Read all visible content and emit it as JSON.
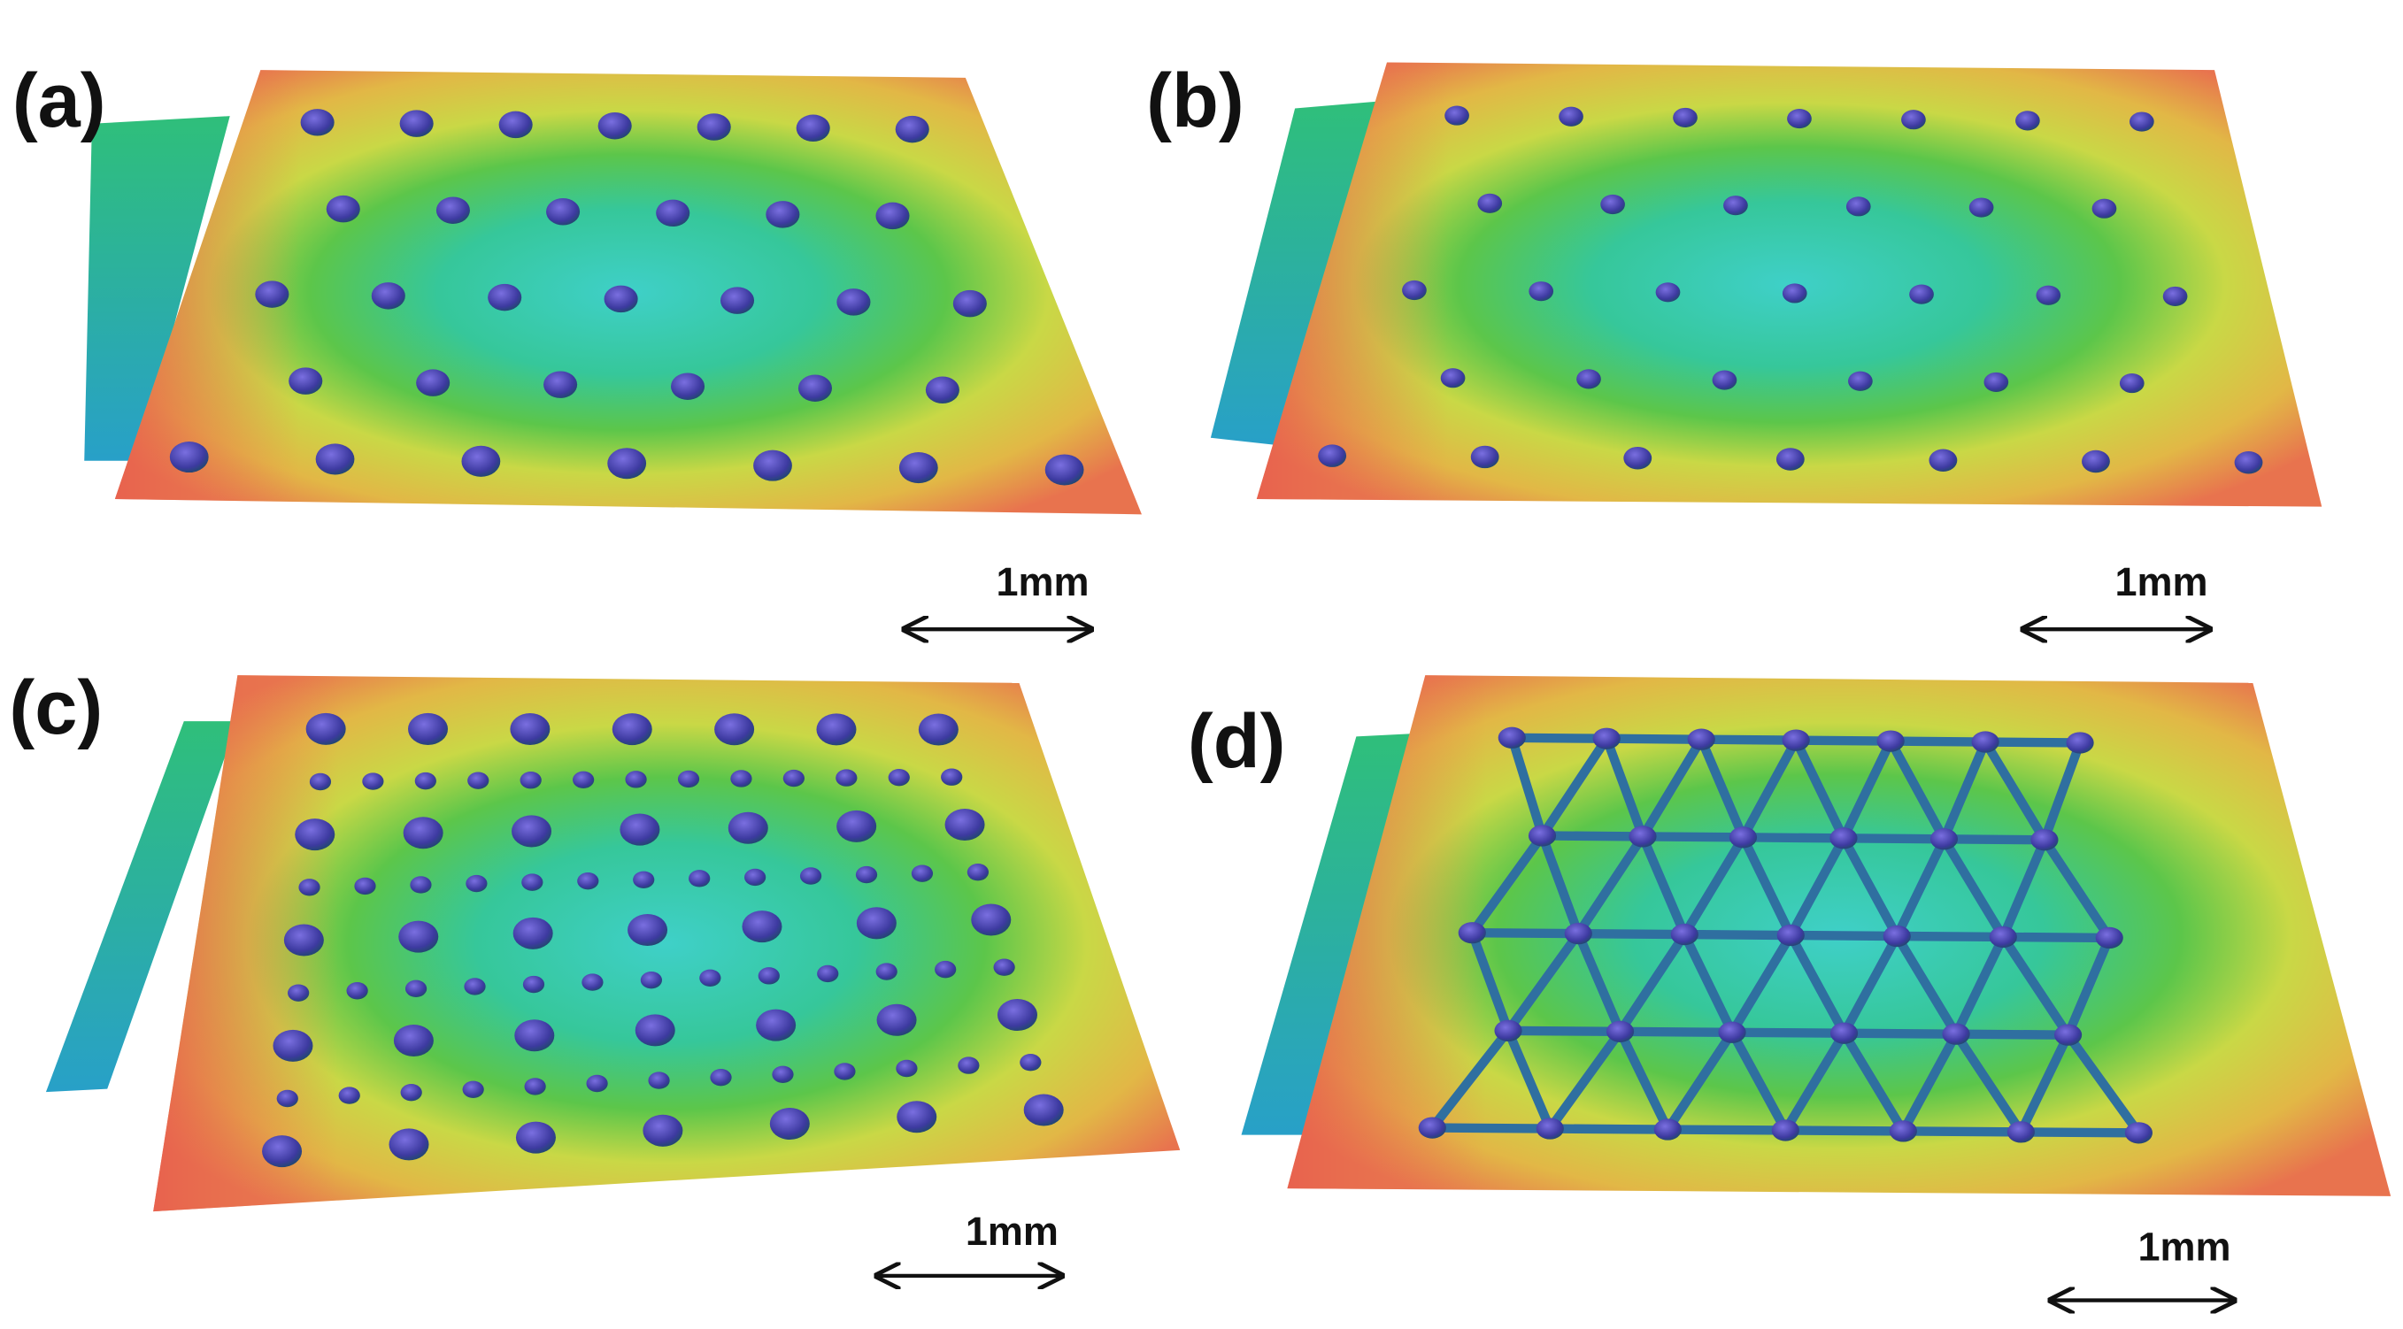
{
  "panels": [
    {
      "label": "(a)",
      "scale_bar": "1mm"
    },
    {
      "label": "(b)",
      "scale_bar": "1mm"
    },
    {
      "label": "(c)",
      "scale_bar": "1mm"
    },
    {
      "label": "(d)",
      "scale_bar": "1mm"
    }
  ]
}
